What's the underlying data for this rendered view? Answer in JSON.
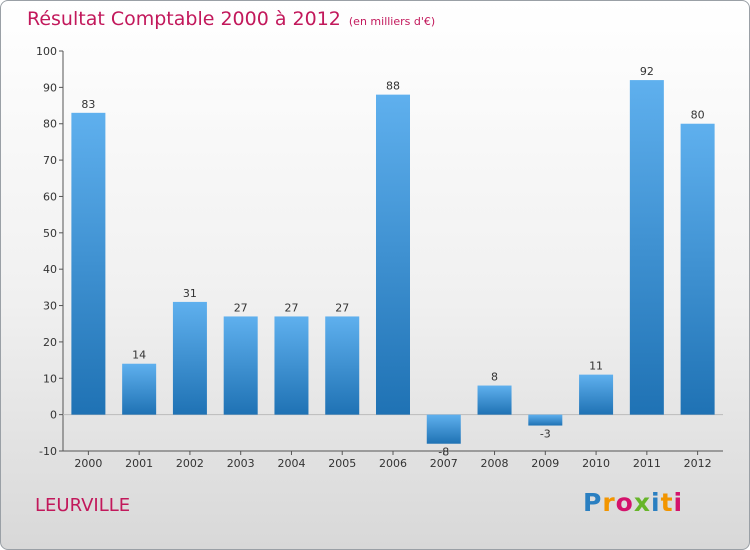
{
  "header": {
    "title": "Résultat Comptable 2000 à 2012",
    "unit": "(en milliers d'€)"
  },
  "footer": {
    "town": "LEURVILLE",
    "logo": "Proxiti"
  },
  "colors": {
    "title": "#c2185b",
    "bar_top": "#5fb0ee",
    "bar_bottom": "#1f72b4"
  },
  "chart_data": {
    "type": "bar",
    "categories": [
      "2000",
      "2001",
      "2002",
      "2003",
      "2004",
      "2005",
      "2006",
      "2007",
      "2008",
      "2009",
      "2010",
      "2011",
      "2012"
    ],
    "values": [
      83,
      14,
      31,
      27,
      27,
      27,
      88,
      -8,
      8,
      -3,
      11,
      92,
      80
    ],
    "data_labels": [
      "83",
      "14",
      "31",
      "27",
      "27",
      "27",
      "88",
      "-8",
      "8",
      "-3",
      "11",
      "92",
      "80"
    ],
    "yticks": [
      -10,
      0,
      10,
      20,
      30,
      40,
      50,
      60,
      70,
      80,
      90,
      100
    ],
    "ylim": [
      -10,
      100
    ],
    "grid": false
  }
}
